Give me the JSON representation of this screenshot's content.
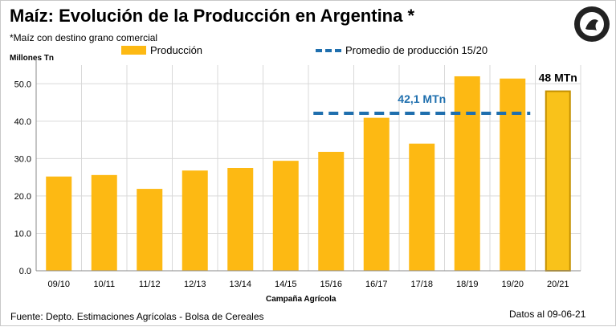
{
  "title": "Maíz: Evolución de la Producción en Argentina *",
  "subtitle": "*Maíz con destino grano comercial",
  "footer": {
    "source": "Fuente: Depto. Estimaciones Agrícolas - Bolsa de Cereales",
    "date": "Datos al 09-06-21"
  },
  "colors": {
    "bar": "#fdb913",
    "bar_highlight": "#f9c21a",
    "bar_highlight_border": "#c49000",
    "average_line": "#1f6fae",
    "average_label": "#1f6fae"
  },
  "chart_data": {
    "type": "bar",
    "title": "Maíz: Evolución de la Producción en Argentina *",
    "xlabel": "Campaña Agrícola",
    "ylabel": "Millones Tn",
    "ylim": [
      0,
      55
    ],
    "yticks": [
      "0.0",
      "10.0",
      "20.0",
      "30.0",
      "40.0",
      "50.0"
    ],
    "grid": true,
    "legend_position": "top",
    "categories": [
      "09/10",
      "10/11",
      "11/12",
      "12/13",
      "13/14",
      "14/15",
      "15/16",
      "16/17",
      "17/18",
      "18/19",
      "19/20",
      "20/21"
    ],
    "series": [
      {
        "name": "Producción",
        "values": [
          25.2,
          25.6,
          21.9,
          26.8,
          27.5,
          29.4,
          31.8,
          40.9,
          34.0,
          52.0,
          51.4,
          48.0
        ]
      },
      {
        "name": "Promedio de producción 15/20",
        "type": "line",
        "from": "15/16",
        "to": "19/20",
        "value": 42.1
      }
    ],
    "annotations": [
      {
        "text": "42,1 MTn",
        "category": "17/18",
        "y": 42.1
      },
      {
        "text": "48 MTn",
        "category": "20/21",
        "y": 48.0
      }
    ]
  }
}
